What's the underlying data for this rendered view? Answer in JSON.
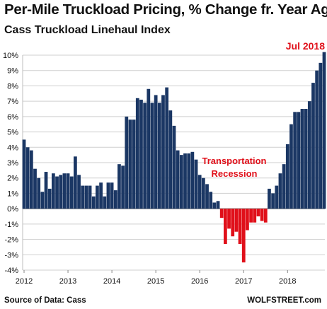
{
  "chart_data": {
    "type": "bar",
    "title": "Per-Mile Truckload Pricing, % Change fr. Year Ago",
    "subtitle": "Cass Truckload Linehaul Index",
    "ylim": [
      -4,
      10
    ],
    "y_ticks": [
      "-4%",
      "-3%",
      "-2%",
      "-1%",
      "0%",
      "1%",
      "2%",
      "3%",
      "4%",
      "5%",
      "6%",
      "7%",
      "8%",
      "9%",
      "10%"
    ],
    "x_ticks": [
      "2012",
      "2013",
      "2014",
      "2015",
      "2016",
      "2017",
      "2018"
    ],
    "start_year": 2012,
    "values": [
      4.5,
      4.0,
      3.8,
      2.6,
      2.0,
      1.1,
      2.4,
      1.3,
      2.3,
      2.1,
      2.2,
      2.3,
      2.3,
      2.1,
      3.4,
      2.2,
      1.5,
      1.5,
      1.5,
      0.8,
      1.5,
      1.7,
      0.8,
      1.7,
      1.7,
      1.2,
      2.9,
      2.8,
      6.0,
      5.8,
      5.8,
      7.2,
      7.1,
      6.9,
      7.8,
      6.9,
      7.4,
      6.9,
      7.4,
      7.9,
      6.4,
      5.4,
      3.8,
      3.5,
      3.6,
      3.6,
      3.7,
      3.2,
      2.2,
      2.0,
      1.6,
      1.1,
      0.4,
      0.5,
      -0.6,
      -2.3,
      -1.3,
      -1.8,
      -1.5,
      -2.3,
      -3.5,
      -1.4,
      -0.9,
      -0.9,
      -0.5,
      -0.8,
      -0.9,
      1.3,
      1.0,
      1.5,
      2.3,
      2.9,
      4.2,
      5.5,
      6.3,
      6.3,
      6.5,
      6.5,
      7.0,
      8.2,
      9.0,
      9.5,
      10.2
    ],
    "positive_color": "#1b3764",
    "negative_color": "#e0101a",
    "annotations": [
      {
        "text": "Transportation",
        "color": "#e0101a"
      },
      {
        "text": "Recession",
        "color": "#e0101a"
      },
      {
        "text": "Jul 2018",
        "color": "#e0101a"
      }
    ],
    "grid": true
  },
  "footer": {
    "source": "Source of Data: Cass",
    "brand": "WOLFSTREET.com"
  }
}
